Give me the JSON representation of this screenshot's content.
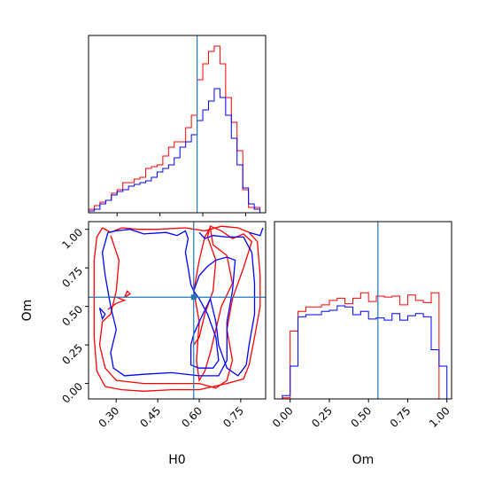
{
  "chart_data": {
    "type": "corner",
    "colors": {
      "series_a": "#ff0000",
      "series_b": "#0000ff",
      "truth": "#1f77b4",
      "axes": "#000000"
    },
    "truths": {
      "H0": 0.58,
      "Om": 0.56
    },
    "panels": {
      "h0_hist": {
        "type": "histogram",
        "xlim": [
          0.2,
          0.82
        ],
        "bin_edges": [
          0.2,
          0.22,
          0.24,
          0.26,
          0.28,
          0.3,
          0.32,
          0.34,
          0.36,
          0.38,
          0.4,
          0.42,
          0.44,
          0.46,
          0.48,
          0.5,
          0.52,
          0.54,
          0.56,
          0.58,
          0.6,
          0.62,
          0.64,
          0.66,
          0.68,
          0.7,
          0.72,
          0.74,
          0.76,
          0.78,
          0.8,
          0.82
        ],
        "series": [
          {
            "values": [
              0.02,
              0.04,
              0.06,
              0.07,
              0.11,
              0.13,
              0.17,
              0.17,
              0.19,
              0.2,
              0.25,
              0.26,
              0.27,
              0.32,
              0.37,
              0.4,
              0.4,
              0.48,
              0.55,
              0.75,
              0.84,
              0.91,
              0.94,
              0.84,
              0.65,
              0.51,
              0.35,
              0.13,
              0.03,
              0.03,
              0.0
            ]
          },
          {
            "values": [
              0.01,
              0.02,
              0.05,
              0.07,
              0.1,
              0.12,
              0.13,
              0.15,
              0.16,
              0.17,
              0.18,
              0.2,
              0.23,
              0.25,
              0.27,
              0.31,
              0.37,
              0.4,
              0.44,
              0.52,
              0.58,
              0.63,
              0.7,
              0.65,
              0.55,
              0.42,
              0.27,
              0.14,
              0.05,
              0.02,
              0.0
            ]
          }
        ]
      },
      "om_hist": {
        "type": "histogram",
        "xlim": [
          -0.1,
          1.03
        ],
        "bin_edges": [
          -0.05,
          0.0,
          0.05,
          0.1,
          0.15,
          0.2,
          0.25,
          0.3,
          0.35,
          0.4,
          0.45,
          0.5,
          0.55,
          0.6,
          0.65,
          0.7,
          0.75,
          0.8,
          0.85,
          0.9,
          0.95,
          1.0
        ],
        "series": [
          {
            "values": [
              0.01,
              0.62,
              0.8,
              0.84,
              0.84,
              0.86,
              0.9,
              0.92,
              0.87,
              0.92,
              0.97,
              0.89,
              0.94,
              0.93,
              0.94,
              0.86,
              0.95,
              0.9,
              0.88,
              0.97,
              0.0
            ]
          },
          {
            "values": [
              0.03,
              0.3,
              0.75,
              0.77,
              0.77,
              0.8,
              0.81,
              0.85,
              0.84,
              0.77,
              0.8,
              0.73,
              0.74,
              0.72,
              0.78,
              0.72,
              0.76,
              0.78,
              0.75,
              0.45,
              0.3
            ]
          }
        ]
      },
      "contour": {
        "xlim": [
          0.2,
          0.84
        ],
        "ylim": [
          -0.1,
          1.05
        ],
        "series": [
          {
            "series": 0,
            "points": [
              [
                0.25,
                1.01
              ],
              [
                0.28,
                0.98
              ],
              [
                0.32,
                1.01
              ],
              [
                0.38,
                1.0
              ],
              [
                0.45,
                1.0
              ],
              [
                0.55,
                1.01
              ],
              [
                0.62,
                0.99
              ],
              [
                0.68,
                1.02
              ],
              [
                0.74,
                1.01
              ],
              [
                0.78,
                0.98
              ],
              [
                0.81,
                0.92
              ],
              [
                0.82,
                0.7
              ],
              [
                0.82,
                0.5
              ],
              [
                0.8,
                0.3
              ],
              [
                0.78,
                0.12
              ],
              [
                0.76,
                0.03
              ],
              [
                0.7,
                0.0
              ],
              [
                0.6,
                -0.04
              ],
              [
                0.5,
                -0.04
              ],
              [
                0.4,
                -0.05
              ],
              [
                0.32,
                -0.04
              ],
              [
                0.26,
                -0.02
              ],
              [
                0.23,
                0.08
              ],
              [
                0.22,
                0.3
              ],
              [
                0.22,
                0.55
              ],
              [
                0.22,
                0.8
              ],
              [
                0.23,
                0.95
              ],
              [
                0.25,
                1.01
              ]
            ]
          },
          {
            "series": 0,
            "points": [
              [
                0.28,
                0.96
              ],
              [
                0.31,
                0.8
              ],
              [
                0.3,
                0.6
              ],
              [
                0.28,
                0.45
              ],
              [
                0.25,
                0.4
              ],
              [
                0.24,
                0.25
              ],
              [
                0.26,
                0.1
              ],
              [
                0.3,
                0.02
              ],
              [
                0.4,
                0.0
              ],
              [
                0.5,
                0.0
              ],
              [
                0.6,
                0.0
              ],
              [
                0.66,
                -0.03
              ],
              [
                0.7,
                0.02
              ],
              [
                0.72,
                0.15
              ],
              [
                0.7,
                0.35
              ],
              [
                0.72,
                0.55
              ],
              [
                0.76,
                0.75
              ],
              [
                0.79,
                0.92
              ],
              [
                0.76,
                0.97
              ],
              [
                0.72,
                0.94
              ],
              [
                0.68,
                0.99
              ],
              [
                0.64,
                1.02
              ],
              [
                0.63,
                0.95
              ],
              [
                0.66,
                0.8
              ],
              [
                0.65,
                0.6
              ],
              [
                0.62,
                0.45
              ],
              [
                0.6,
                0.3
              ],
              [
                0.58,
                0.25
              ]
            ]
          },
          {
            "series": 0,
            "points": [
              [
                0.64,
                1.01
              ],
              [
                0.65,
                0.9
              ],
              [
                0.7,
                0.83
              ],
              [
                0.72,
                0.65
              ],
              [
                0.68,
                0.5
              ],
              [
                0.66,
                0.35
              ],
              [
                0.64,
                0.2
              ],
              [
                0.62,
                0.08
              ],
              [
                0.6,
                0.02
              ],
              [
                0.59,
                0.15
              ],
              [
                0.6,
                0.4
              ],
              [
                0.58,
                0.6
              ],
              [
                0.6,
                0.8
              ],
              [
                0.62,
                0.95
              ],
              [
                0.64,
                1.01
              ]
            ]
          },
          {
            "series": 0,
            "points": [
              [
                0.27,
                0.48
              ],
              [
                0.3,
                0.52
              ],
              [
                0.33,
                0.54
              ],
              [
                0.3,
                0.56
              ],
              [
                0.27,
                0.56
              ]
            ]
          },
          {
            "series": 0,
            "points": [
              [
                0.33,
                0.56
              ],
              [
                0.35,
                0.58
              ],
              [
                0.34,
                0.6
              ],
              [
                0.33,
                0.56
              ]
            ]
          },
          {
            "series": 1,
            "points": [
              [
                0.27,
                0.98
              ],
              [
                0.3,
                0.99
              ],
              [
                0.35,
                1.0
              ],
              [
                0.4,
                0.97
              ],
              [
                0.48,
                0.98
              ],
              [
                0.52,
                0.96
              ],
              [
                0.55,
                0.99
              ],
              [
                0.56,
                0.94
              ],
              [
                0.55,
                0.85
              ],
              [
                0.56,
                0.75
              ],
              [
                0.57,
                0.64
              ],
              [
                0.58,
                0.6
              ],
              [
                0.6,
                0.7
              ],
              [
                0.63,
                0.76
              ],
              [
                0.66,
                0.8
              ],
              [
                0.7,
                0.82
              ],
              [
                0.73,
                0.8
              ],
              [
                0.72,
                0.6
              ],
              [
                0.7,
                0.4
              ],
              [
                0.7,
                0.15
              ],
              [
                0.67,
                0.05
              ],
              [
                0.6,
                0.05
              ],
              [
                0.5,
                0.07
              ],
              [
                0.4,
                0.06
              ],
              [
                0.33,
                0.05
              ],
              [
                0.29,
                0.1
              ],
              [
                0.28,
                0.2
              ],
              [
                0.3,
                0.35
              ],
              [
                0.28,
                0.5
              ],
              [
                0.26,
                0.7
              ],
              [
                0.25,
                0.85
              ],
              [
                0.27,
                0.98
              ]
            ]
          },
          {
            "series": 1,
            "points": [
              [
                0.6,
                0.98
              ],
              [
                0.62,
                0.94
              ],
              [
                0.65,
                0.96
              ],
              [
                0.7,
                0.95
              ],
              [
                0.76,
                0.95
              ],
              [
                0.79,
                0.85
              ],
              [
                0.8,
                0.65
              ],
              [
                0.8,
                0.45
              ],
              [
                0.78,
                0.25
              ],
              [
                0.77,
                0.12
              ],
              [
                0.74,
                0.05
              ],
              [
                0.7,
                0.1
              ],
              [
                0.67,
                0.25
              ],
              [
                0.66,
                0.4
              ],
              [
                0.64,
                0.55
              ],
              [
                0.6,
                0.4
              ],
              [
                0.58,
                0.32
              ],
              [
                0.57,
                0.25
              ],
              [
                0.57,
                0.12
              ],
              [
                0.6,
                0.1
              ],
              [
                0.65,
                0.1
              ],
              [
                0.67,
                0.15
              ],
              [
                0.66,
                0.3
              ],
              [
                0.63,
                0.45
              ],
              [
                0.6,
                0.55
              ],
              [
                0.58,
                0.6
              ]
            ]
          },
          {
            "series": 1,
            "points": [
              [
                0.78,
                0.98
              ],
              [
                0.82,
                0.96
              ],
              [
                0.83,
                1.01
              ]
            ]
          },
          {
            "series": 1,
            "points": [
              [
                0.24,
                0.49
              ],
              [
                0.26,
                0.45
              ],
              [
                0.25,
                0.42
              ],
              [
                0.24,
                0.49
              ]
            ]
          }
        ]
      }
    },
    "axes": {
      "h0_ticks": [
        0.3,
        0.45,
        0.6,
        0.75
      ],
      "h0_tick_labels": [
        "0.30",
        "0.45",
        "0.60",
        "0.75"
      ],
      "om_y_ticks": [
        0.0,
        0.25,
        0.5,
        0.75,
        1.0
      ],
      "om_y_tick_labels": [
        "0.00",
        "0.25",
        "0.50",
        "0.75",
        "1.00"
      ],
      "om_x_ticks": [
        0.0,
        0.25,
        0.5,
        0.75,
        1.0
      ],
      "om_x_tick_labels": [
        "0.00",
        "0.25",
        "0.50",
        "0.75",
        "1.00"
      ],
      "xlabel_h0": "H0",
      "xlabel_om": "Om",
      "ylabel_om": "Om"
    }
  }
}
